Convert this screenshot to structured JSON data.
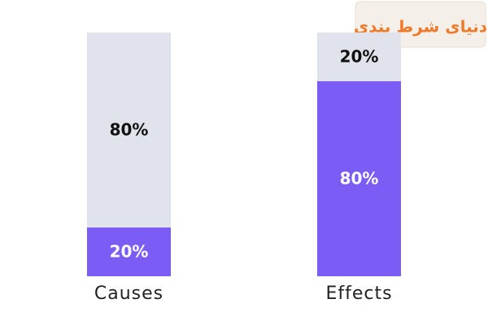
{
  "chart_data": {
    "type": "stacked_bar",
    "categories": [
      "Causes",
      "Effects"
    ],
    "series": [
      {
        "color": "#7b5cf5",
        "label_color": "#ffffff",
        "values": [
          20,
          80
        ],
        "value_labels": [
          "20%",
          "80%"
        ]
      },
      {
        "color": "#e1e3ec",
        "label_color": "#111111",
        "values": [
          80,
          20
        ],
        "value_labels": [
          "80%",
          "20%"
        ]
      }
    ]
  },
  "watermark": {
    "text": "دنیای شرط بندی"
  }
}
